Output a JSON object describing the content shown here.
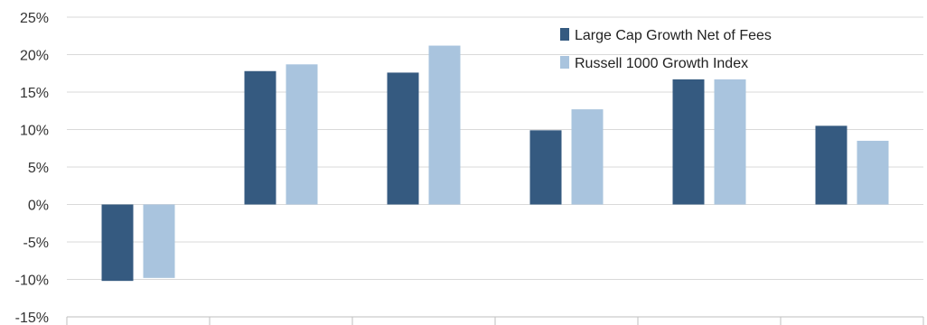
{
  "chart_data": {
    "type": "bar",
    "title": "",
    "xlabel": "",
    "ylabel": "",
    "categories": [
      "",
      "",
      "",
      "",
      "",
      ""
    ],
    "series": [
      {
        "name": "Large Cap Growth  Net of Fees",
        "color": "#355a80",
        "values": [
          -10.2,
          17.8,
          17.6,
          9.9,
          16.7,
          10.5
        ]
      },
      {
        "name": "Russell 1000 Growth Index",
        "color": "#a9c4de",
        "values": [
          -9.8,
          18.7,
          21.2,
          12.7,
          16.7,
          8.5
        ]
      }
    ],
    "ylim": [
      -15,
      25
    ],
    "yticks": [
      25,
      20,
      15,
      10,
      5,
      0,
      -5,
      -10,
      -15
    ],
    "ytick_labels": [
      "25%",
      "20%",
      "15%",
      "10%",
      "5%",
      "0%",
      "-5%",
      "-10%",
      "-15%"
    ],
    "grid": true,
    "legend_position": "top-right"
  }
}
